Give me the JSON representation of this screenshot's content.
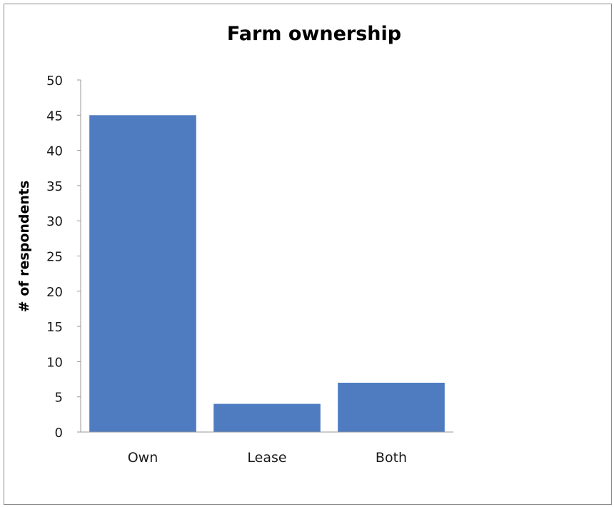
{
  "chart_data": {
    "type": "bar",
    "title": "Farm ownership",
    "xlabel": "",
    "ylabel": "# of respondents",
    "categories": [
      "Own",
      "Lease",
      "Both"
    ],
    "values": [
      45,
      4,
      7
    ],
    "ylim": [
      0,
      50
    ],
    "yticks": [
      0,
      5,
      10,
      15,
      20,
      25,
      30,
      35,
      40,
      45,
      50
    ],
    "grid": false,
    "legend": "none",
    "bar_color": "#4F7CC1"
  }
}
